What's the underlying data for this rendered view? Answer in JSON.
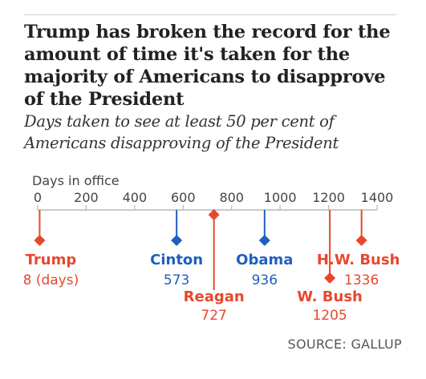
{
  "title": "Trump has broken the record for the amount of time it's taken for the majority of Americans to disapprove of the President",
  "subtitle": "Days taken to see at least 50 per cent of Americans disapproving of the President",
  "source": "SOURCE: GALLUP",
  "chart_data": {
    "type": "scatter",
    "xlabel": "Days in office",
    "xlim": [
      0,
      1400
    ],
    "ticks": [
      0,
      200,
      400,
      600,
      800,
      1000,
      1200,
      1400
    ],
    "tick_labels": [
      "0",
      "200",
      "400",
      "600",
      "800",
      "1000",
      "1200",
      "1400"
    ],
    "grid": false,
    "points": [
      {
        "name": "Trump",
        "value": 8,
        "value_label": "8 (days)",
        "party": "republican"
      },
      {
        "name": "Cinton",
        "value": 573,
        "value_label": "573",
        "party": "democrat"
      },
      {
        "name": "Reagan",
        "value": 727,
        "value_label": "727",
        "party": "republican"
      },
      {
        "name": "Obama",
        "value": 936,
        "value_label": "936",
        "party": "democrat"
      },
      {
        "name": "W. Bush",
        "value": 1205,
        "value_label": "1205",
        "party": "republican"
      },
      {
        "name": "H.W. Bush",
        "value": 1336,
        "value_label": "1336",
        "party": "republican"
      }
    ]
  },
  "colors": {
    "republican": "#e8472e",
    "democrat": "#1f5fbf",
    "axis": "#b8b8b8",
    "tick_text": "#444444"
  }
}
